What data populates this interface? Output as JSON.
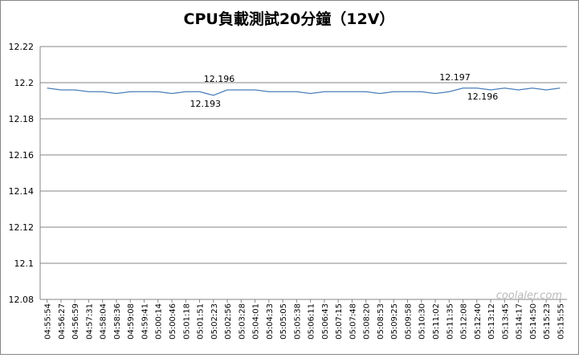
{
  "chart_data": {
    "type": "line",
    "title": "CPU負載測試20分鐘（12V）",
    "categories": [
      "04:55:54",
      "04:56:27",
      "04:56:59",
      "04:57:31",
      "04:58:04",
      "04:58:36",
      "04:59:08",
      "04:59:41",
      "05:00:14",
      "05:00:46",
      "05:01:18",
      "05:01:51",
      "05:02:23",
      "05:02:56",
      "05:03:28",
      "05:04:01",
      "05:04:33",
      "05:05:05",
      "05:05:38",
      "05:06:11",
      "05:06:43",
      "05:07:15",
      "05:07:48",
      "05:08:20",
      "05:08:53",
      "05:09:25",
      "05:09:58",
      "05:10:30",
      "05:11:02",
      "05:11:35",
      "05:12:08",
      "05:12:40",
      "05:13:12",
      "05:13:45",
      "05:14:17",
      "05:14:50",
      "05:15:23",
      "05:15:55"
    ],
    "series": [
      {
        "name": "12V",
        "color": "#4a7ebb",
        "values": [
          12.197,
          12.196,
          12.196,
          12.195,
          12.195,
          12.194,
          12.195,
          12.195,
          12.195,
          12.194,
          12.195,
          12.195,
          12.193,
          12.196,
          12.196,
          12.196,
          12.195,
          12.195,
          12.195,
          12.194,
          12.195,
          12.195,
          12.195,
          12.195,
          12.194,
          12.195,
          12.195,
          12.195,
          12.194,
          12.195,
          12.197,
          12.197,
          12.196,
          12.197,
          12.196,
          12.197,
          12.196,
          12.197
        ]
      }
    ],
    "annotations": [
      {
        "x": "05:02:23",
        "text": "12.193"
      },
      {
        "x": "05:02:56",
        "text": "12.196"
      },
      {
        "x": "05:12:08",
        "text": "12.197"
      },
      {
        "x": "05:13:12",
        "text": "12.196"
      }
    ],
    "ylim": [
      12.08,
      12.22
    ],
    "yticks": [
      12.08,
      12.1,
      12.12,
      12.14,
      12.16,
      12.18,
      12.2,
      12.22
    ],
    "grid": true,
    "watermark": "coolaler.com"
  }
}
